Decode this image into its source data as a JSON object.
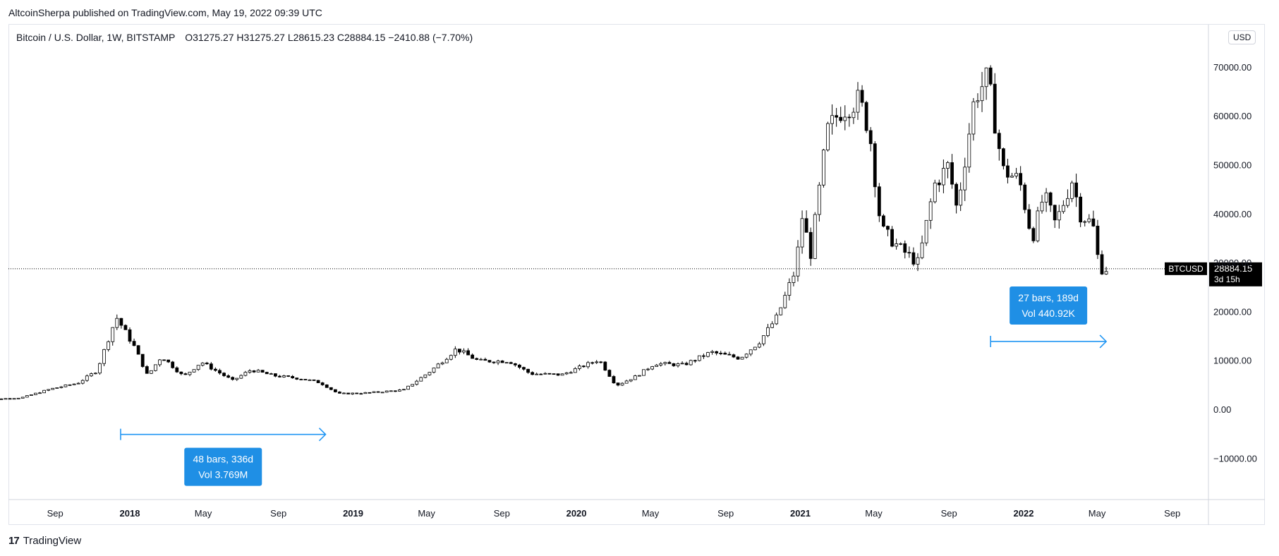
{
  "publish_line": "AltcoinSherpa published on TradingView.com, May 19, 2022 09:39 UTC",
  "legend": {
    "symbol": "Bitcoin / U.S. Dollar, 1W, BITSTAMP",
    "ohlc": "O31275.27 H31275.27 L28615.23 C28884.15 −2410.88 (−7.70%)"
  },
  "currency_label": "USD",
  "footer": {
    "logo_text": "TradingView",
    "logo_icon": "tradingview-logo-icon"
  },
  "colors": {
    "up": "#ffffff",
    "down": "#000000",
    "wick": "#000000",
    "measure": "#2196f3",
    "badge_bg": "#1f8fe5",
    "price_label_bg": "#000000"
  },
  "chart_data": {
    "type": "candlestick",
    "symbol": "BTCUSD",
    "timeframe": "1W",
    "ylim": [
      -18000,
      73000
    ],
    "y_ticks": [
      70000,
      60000,
      50000,
      40000,
      30000,
      20000,
      10000,
      0,
      -10000
    ],
    "y_tick_labels": [
      "70000.00",
      "60000.00",
      "50000.00",
      "40000.00",
      "30000.00",
      "20000.00",
      "10000.00",
      "0.00",
      "−10000.00"
    ],
    "x_tick_labels": [
      "Sep",
      "2018",
      "May",
      "Sep",
      "2019",
      "May",
      "Sep",
      "2020",
      "May",
      "Sep",
      "2021",
      "May",
      "Sep",
      "2022",
      "May",
      "Sep"
    ],
    "x_tick_dates": [
      "2017-09-01",
      "2018-01-01",
      "2018-05-01",
      "2018-09-01",
      "2019-01-01",
      "2019-05-01",
      "2019-09-01",
      "2020-01-01",
      "2020-05-01",
      "2020-09-01",
      "2021-01-01",
      "2021-05-01",
      "2021-09-01",
      "2022-01-01",
      "2022-05-01",
      "2022-09-01"
    ],
    "last_price": {
      "symbol": "BTCUSD",
      "value": 28884.15,
      "label": "28884.15",
      "countdown": "3d 15h"
    },
    "price_path": [
      [
        "2017-05-01",
        2000
      ],
      [
        "2017-07-15",
        2500
      ],
      [
        "2017-09-01",
        4300
      ],
      [
        "2017-10-15",
        5500
      ],
      [
        "2017-11-15",
        8000
      ],
      [
        "2017-12-17",
        19000
      ],
      [
        "2018-01-15",
        13000
      ],
      [
        "2018-02-06",
        7000
      ],
      [
        "2018-03-01",
        11000
      ],
      [
        "2018-04-06",
        6800
      ],
      [
        "2018-05-05",
        9800
      ],
      [
        "2018-06-25",
        6000
      ],
      [
        "2018-07-25",
        8200
      ],
      [
        "2018-09-01",
        7000
      ],
      [
        "2018-10-15",
        6400
      ],
      [
        "2018-11-15",
        5600
      ],
      [
        "2018-12-15",
        3300
      ],
      [
        "2019-02-01",
        3500
      ],
      [
        "2019-04-01",
        4100
      ],
      [
        "2019-05-15",
        8000
      ],
      [
        "2019-06-26",
        12500
      ],
      [
        "2019-08-01",
        10000
      ],
      [
        "2019-09-20",
        10000
      ],
      [
        "2019-10-25",
        7400
      ],
      [
        "2019-12-15",
        7200
      ],
      [
        "2020-02-14",
        10300
      ],
      [
        "2020-03-13",
        5000
      ],
      [
        "2020-04-15",
        6900
      ],
      [
        "2020-05-15",
        9500
      ],
      [
        "2020-07-01",
        9200
      ],
      [
        "2020-08-15",
        11800
      ],
      [
        "2020-10-01",
        10600
      ],
      [
        "2020-11-01",
        13800
      ],
      [
        "2020-12-01",
        19000
      ],
      [
        "2021-01-01",
        29000
      ],
      [
        "2021-01-10",
        40000
      ],
      [
        "2021-01-25",
        32000
      ],
      [
        "2021-02-21",
        57000
      ],
      [
        "2021-03-13",
        61000
      ],
      [
        "2021-04-14",
        63500
      ],
      [
        "2021-05-01",
        57000
      ],
      [
        "2021-05-20",
        37000
      ],
      [
        "2021-06-20",
        33000
      ],
      [
        "2021-07-20",
        30000
      ],
      [
        "2021-08-15",
        46000
      ],
      [
        "2021-09-07",
        50000
      ],
      [
        "2021-09-21",
        41000
      ],
      [
        "2021-10-20",
        64000
      ],
      [
        "2021-11-10",
        68000
      ],
      [
        "2021-12-05",
        49000
      ],
      [
        "2022-01-01",
        47000
      ],
      [
        "2022-01-22",
        35000
      ],
      [
        "2022-02-10",
        44000
      ],
      [
        "2022-03-01",
        38000
      ],
      [
        "2022-03-28",
        47000
      ],
      [
        "2022-04-11",
        40000
      ],
      [
        "2022-05-01",
        38000
      ],
      [
        "2022-05-12",
        29000
      ],
      [
        "2022-05-16",
        28884
      ]
    ],
    "measurements": [
      {
        "start": "2017-12-17",
        "end": "2018-11-17",
        "bars_text": "48 bars, 336d",
        "vol_text": "Vol 3.769M",
        "level": -5000
      },
      {
        "start": "2021-11-08",
        "end": "2022-05-16",
        "bars_text": "27 bars, 189d",
        "vol_text": "Vol 440.92K",
        "level": 14000
      }
    ]
  }
}
